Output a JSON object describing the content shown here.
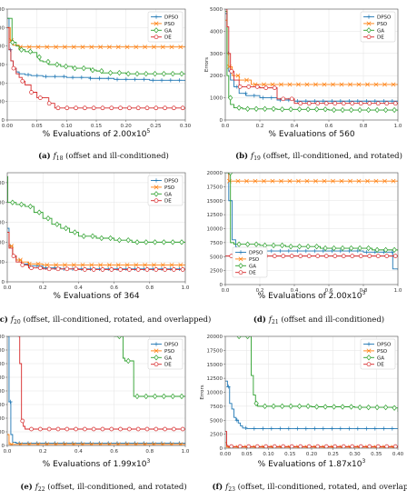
{
  "colors": {
    "DPSO": "#1f77b4",
    "PSO": "#ff7f0e",
    "GA": "#2ca02c",
    "DE": "#d62728"
  },
  "chart_data": [
    {
      "type": "line",
      "caption_label": "(a)",
      "caption_func": "f",
      "caption_sub": "18",
      "caption_rest": "(offset and ill-conditioned)",
      "xlabel_main": "% Evaluations of 2.00x10",
      "xlabel_exp": "5",
      "ylabel": "Errors",
      "xlim": [
        0,
        0.3
      ],
      "ylim": [
        0,
        6000
      ],
      "xticks": [
        0,
        0.05,
        0.1,
        0.15,
        0.2,
        0.25,
        0.3
      ],
      "xtick_labels": [
        "0.00",
        "0.05",
        "0.10",
        "0.15",
        "0.20",
        "0.25",
        "0.30"
      ],
      "yticks": [
        0,
        1000,
        2000,
        3000,
        4000,
        5000,
        6000
      ],
      "ytick_labels": [
        "0",
        "1000",
        "2000",
        "3000",
        "4000",
        "5000",
        "6000"
      ],
      "legend_position": "top-right",
      "grid": true,
      "series": [
        {
          "name": "DPSO",
          "marker": "plus",
          "x": [
            0,
            0.003,
            0.006,
            0.01,
            0.015,
            0.02,
            0.03,
            0.04,
            0.06,
            0.1,
            0.14,
            0.18,
            0.24,
            0.3
          ],
          "y": [
            5500,
            3800,
            3200,
            2800,
            2600,
            2500,
            2450,
            2400,
            2350,
            2300,
            2250,
            2200,
            2150,
            2100
          ]
        },
        {
          "name": "PSO",
          "marker": "x",
          "x": [
            0,
            0.005,
            0.01,
            0.02,
            0.3
          ],
          "y": [
            5000,
            4300,
            4050,
            3950,
            3950
          ]
        },
        {
          "name": "GA",
          "marker": "diamond",
          "x": [
            0,
            0.008,
            0.015,
            0.02,
            0.03,
            0.04,
            0.05,
            0.055,
            0.06,
            0.07,
            0.09,
            0.11,
            0.13,
            0.14,
            0.15,
            0.16,
            0.2,
            0.3
          ],
          "y": [
            5500,
            4200,
            4000,
            3800,
            3700,
            3650,
            3400,
            3200,
            3150,
            3000,
            2900,
            2800,
            2800,
            2700,
            2650,
            2550,
            2500,
            2500
          ]
        },
        {
          "name": "DE",
          "marker": "circle",
          "x": [
            0,
            0.003,
            0.006,
            0.01,
            0.015,
            0.02,
            0.025,
            0.03,
            0.04,
            0.05,
            0.06,
            0.07,
            0.08,
            0.3
          ],
          "y": [
            5000,
            3800,
            3200,
            2800,
            2500,
            2300,
            2100,
            1900,
            1500,
            1200,
            1200,
            900,
            650,
            600
          ]
        }
      ]
    },
    {
      "type": "line",
      "caption_label": "(b)",
      "caption_func": "f",
      "caption_sub": "19",
      "caption_rest": "(offset, ill-conditioned, and rotated)",
      "xlabel_main": "% Evaluations of 560",
      "xlabel_exp": "",
      "ylabel": "Errors",
      "xlim": [
        0,
        1
      ],
      "ylim": [
        0,
        5000
      ],
      "xticks": [
        0,
        0.2,
        0.4,
        0.6,
        0.8,
        1.0
      ],
      "xtick_labels": [
        "0.0",
        "0.2",
        "0.4",
        "0.6",
        "0.8",
        "1.0"
      ],
      "yticks": [
        0,
        1000,
        2000,
        3000,
        4000,
        5000
      ],
      "ytick_labels": [
        "0",
        "1000",
        "2000",
        "3000",
        "4000",
        "5000"
      ],
      "legend_position": "top-right",
      "grid": true,
      "series": [
        {
          "name": "DPSO",
          "marker": "plus",
          "x": [
            0,
            0.01,
            0.02,
            0.03,
            0.05,
            0.08,
            0.12,
            0.2,
            0.3,
            0.4,
            1.0
          ],
          "y": [
            4800,
            3000,
            2200,
            1800,
            1500,
            1200,
            1100,
            1000,
            900,
            850,
            850
          ]
        },
        {
          "name": "PSO",
          "marker": "x",
          "x": [
            0,
            0.01,
            0.02,
            0.04,
            0.08,
            0.15,
            1.0
          ],
          "y": [
            4500,
            3000,
            2400,
            2000,
            1800,
            1600,
            1600
          ]
        },
        {
          "name": "GA",
          "marker": "diamond",
          "x": [
            0,
            0.01,
            0.02,
            0.03,
            0.05,
            0.1,
            0.3,
            0.6,
            1.0
          ],
          "y": [
            4900,
            2000,
            1000,
            700,
            550,
            500,
            480,
            450,
            400
          ]
        },
        {
          "name": "DE",
          "marker": "circle",
          "x": [
            0,
            0.01,
            0.02,
            0.03,
            0.05,
            0.08,
            0.12,
            0.2,
            0.3,
            0.4,
            1.0
          ],
          "y": [
            5000,
            4200,
            3000,
            2200,
            1800,
            1500,
            1500,
            1450,
            950,
            750,
            750
          ]
        }
      ]
    },
    {
      "type": "line",
      "caption_label": "(c)",
      "caption_func": "f",
      "caption_sub": "20",
      "caption_rest": "(offset, ill-conditioned, rotated, and overlapped)",
      "xlabel_main": "% Evaluations of 364",
      "xlabel_exp": "",
      "ylabel": "Errors",
      "xlim": [
        0,
        1
      ],
      "ylim": [
        0,
        5500
      ],
      "xticks": [
        0,
        0.2,
        0.4,
        0.6,
        0.8,
        1.0
      ],
      "xtick_labels": [
        "0.0",
        "0.2",
        "0.4",
        "0.6",
        "0.8",
        "1.0"
      ],
      "yticks": [
        0,
        1000,
        2000,
        3000,
        4000,
        5000
      ],
      "ytick_labels": [
        "0",
        "1000",
        "2000",
        "3000",
        "4000",
        "5000"
      ],
      "legend_position": "top-right",
      "grid": true,
      "series": [
        {
          "name": "DPSO",
          "marker": "plus",
          "x": [
            0,
            0.01,
            0.03,
            0.05,
            0.08,
            0.12,
            0.2,
            0.3,
            1.0
          ],
          "y": [
            2700,
            1800,
            1300,
            1100,
            900,
            800,
            700,
            650,
            600
          ]
        },
        {
          "name": "PSO",
          "marker": "x",
          "x": [
            0,
            0.01,
            0.03,
            0.05,
            0.08,
            0.12,
            0.2,
            1.0
          ],
          "y": [
            2500,
            1800,
            1300,
            1100,
            1000,
            900,
            850,
            850
          ]
        },
        {
          "name": "GA",
          "marker": "diamond",
          "x": [
            0,
            0.003,
            0.05,
            0.1,
            0.15,
            0.2,
            0.25,
            0.3,
            0.35,
            0.4,
            0.5,
            0.6,
            0.7,
            1.0
          ],
          "y": [
            5300,
            4000,
            3900,
            3800,
            3500,
            3200,
            2900,
            2700,
            2500,
            2300,
            2200,
            2100,
            2000,
            1950
          ]
        },
        {
          "name": "DE",
          "marker": "circle",
          "x": [
            0,
            0.01,
            0.03,
            0.05,
            0.08,
            0.12,
            0.2,
            0.4,
            1.0
          ],
          "y": [
            2500,
            1700,
            1300,
            1000,
            850,
            700,
            650,
            620,
            600
          ]
        }
      ]
    },
    {
      "type": "line",
      "caption_label": "(d)",
      "caption_func": "f",
      "caption_sub": "21",
      "caption_rest": "(offset and ill-conditioned)",
      "xlabel_main": "% Evaluations of 2.00x10",
      "xlabel_exp": "3",
      "ylabel": "",
      "xlim": [
        0,
        1
      ],
      "ylim": [
        0,
        20000
      ],
      "xticks": [
        0,
        0.2,
        0.4,
        0.6,
        0.8,
        1.0
      ],
      "xtick_labels": [
        "0.0",
        "0.2",
        "0.4",
        "0.6",
        "0.8",
        "1.0"
      ],
      "yticks": [
        0,
        2500,
        5000,
        7500,
        10000,
        12500,
        15000,
        17500,
        20000
      ],
      "ytick_labels": [
        "0",
        "2500",
        "5000",
        "7500",
        "10000",
        "12500",
        "15000",
        "17500",
        "20000"
      ],
      "legend_position": "lower-left",
      "grid": true,
      "series": [
        {
          "name": "DPSO",
          "marker": "plus",
          "x": [
            0,
            0.02,
            0.04,
            0.06,
            0.08,
            0.2,
            0.5,
            0.8,
            0.95,
            0.97,
            1.0
          ],
          "y": [
            20000,
            15000,
            8000,
            6500,
            6200,
            6000,
            6000,
            5800,
            5800,
            2800,
            2600
          ]
        },
        {
          "name": "PSO",
          "marker": "x",
          "x": [
            0,
            0.02,
            1.0
          ],
          "y": [
            20000,
            18500,
            18500
          ]
        },
        {
          "name": "GA",
          "marker": "diamond",
          "x": [
            0,
            0.03,
            0.05,
            0.2,
            0.35,
            0.55,
            0.85,
            1.0
          ],
          "y": [
            20000,
            7500,
            7200,
            7000,
            6800,
            6500,
            6200,
            6000
          ]
        },
        {
          "name": "DE",
          "marker": "circle",
          "x": [
            0,
            1.0
          ],
          "y": [
            5100,
            5100
          ]
        }
      ]
    },
    {
      "type": "line",
      "caption_label": "(e)",
      "caption_func": "f",
      "caption_sub": "22",
      "caption_rest": "(offset, ill-conditioned, and rotated)",
      "xlabel_main": "% Evaluations of 1.99x10",
      "xlabel_exp": "3",
      "ylabel": "Errors",
      "xlim": [
        0,
        1
      ],
      "ylim": [
        0,
        20000
      ],
      "xticks": [
        0,
        0.2,
        0.4,
        0.6,
        0.8,
        1.0
      ],
      "xtick_labels": [
        "0.0",
        "0.2",
        "0.4",
        "0.6",
        "0.8",
        "1.0"
      ],
      "yticks": [
        0,
        2500,
        5000,
        7500,
        10000,
        12500,
        15000,
        17500,
        20000
      ],
      "ytick_labels": [
        "0",
        "2500",
        "5000",
        "7500",
        "10000",
        "12500",
        "15000",
        "17500",
        "20000"
      ],
      "legend_position": "top-right",
      "grid": true,
      "series": [
        {
          "name": "DPSO",
          "marker": "plus",
          "x": [
            0,
            0.01,
            0.02,
            0.03,
            0.05,
            1.0
          ],
          "y": [
            20000,
            8000,
            2000,
            600,
            400,
            400
          ]
        },
        {
          "name": "PSO",
          "marker": "x",
          "x": [
            0,
            0.01,
            1.0
          ],
          "y": [
            2000,
            200,
            200
          ]
        },
        {
          "name": "GA",
          "marker": "diamond",
          "x": [
            0.6,
            0.65,
            0.66,
            0.7,
            0.71,
            1.0
          ],
          "y": [
            20000,
            16000,
            15500,
            15500,
            9000,
            9000
          ]
        },
        {
          "name": "DE",
          "marker": "circle",
          "x": [
            0.06,
            0.07,
            0.08,
            0.09,
            0.1,
            1.0
          ],
          "y": [
            20000,
            15000,
            4500,
            3500,
            3000,
            3000
          ]
        }
      ]
    },
    {
      "type": "line",
      "caption_label": "(f)",
      "caption_func": "f",
      "caption_sub": "23",
      "caption_rest": "(offset, ill-conditioned, rotated, and overlapped)",
      "xlabel_main": "% Evaluations of 1.87x10",
      "xlabel_exp": "3",
      "ylabel": "Errors",
      "xlim": [
        0,
        0.4
      ],
      "ylim": [
        0,
        20000
      ],
      "xticks": [
        0,
        0.05,
        0.1,
        0.15,
        0.2,
        0.25,
        0.3,
        0.35,
        0.4
      ],
      "xtick_labels": [
        "0.00",
        "0.05",
        "0.10",
        "0.15",
        "0.20",
        "0.25",
        "0.30",
        "0.35",
        "0.40"
      ],
      "yticks": [
        0,
        2500,
        5000,
        7500,
        10000,
        12500,
        15000,
        17500,
        20000
      ],
      "ytick_labels": [
        "0",
        "2500",
        "5000",
        "7500",
        "10000",
        "12500",
        "15000",
        "17500",
        "20000"
      ],
      "legend_position": "top-right",
      "grid": true,
      "series": [
        {
          "name": "DPSO",
          "marker": "plus",
          "x": [
            0,
            0.005,
            0.01,
            0.015,
            0.02,
            0.025,
            0.03,
            0.035,
            0.04,
            0.05,
            0.4
          ],
          "y": [
            12000,
            11000,
            8000,
            7000,
            5500,
            5000,
            4500,
            4000,
            3600,
            3500,
            3500
          ]
        },
        {
          "name": "PSO",
          "marker": "x",
          "x": [
            0,
            0.003,
            0.4
          ],
          "y": [
            1000,
            200,
            200
          ]
        },
        {
          "name": "GA",
          "marker": "diamond",
          "x": [
            0.03,
            0.06,
            0.065,
            0.07,
            0.075,
            0.2,
            0.3,
            0.39,
            0.4
          ],
          "y": [
            20000,
            13000,
            9500,
            8000,
            7500,
            7400,
            7300,
            7200,
            6500
          ]
        },
        {
          "name": "DE",
          "marker": "circle",
          "x": [
            0,
            0.003,
            0.006,
            0.4
          ],
          "y": [
            3000,
            500,
            300,
            300
          ]
        }
      ]
    }
  ]
}
